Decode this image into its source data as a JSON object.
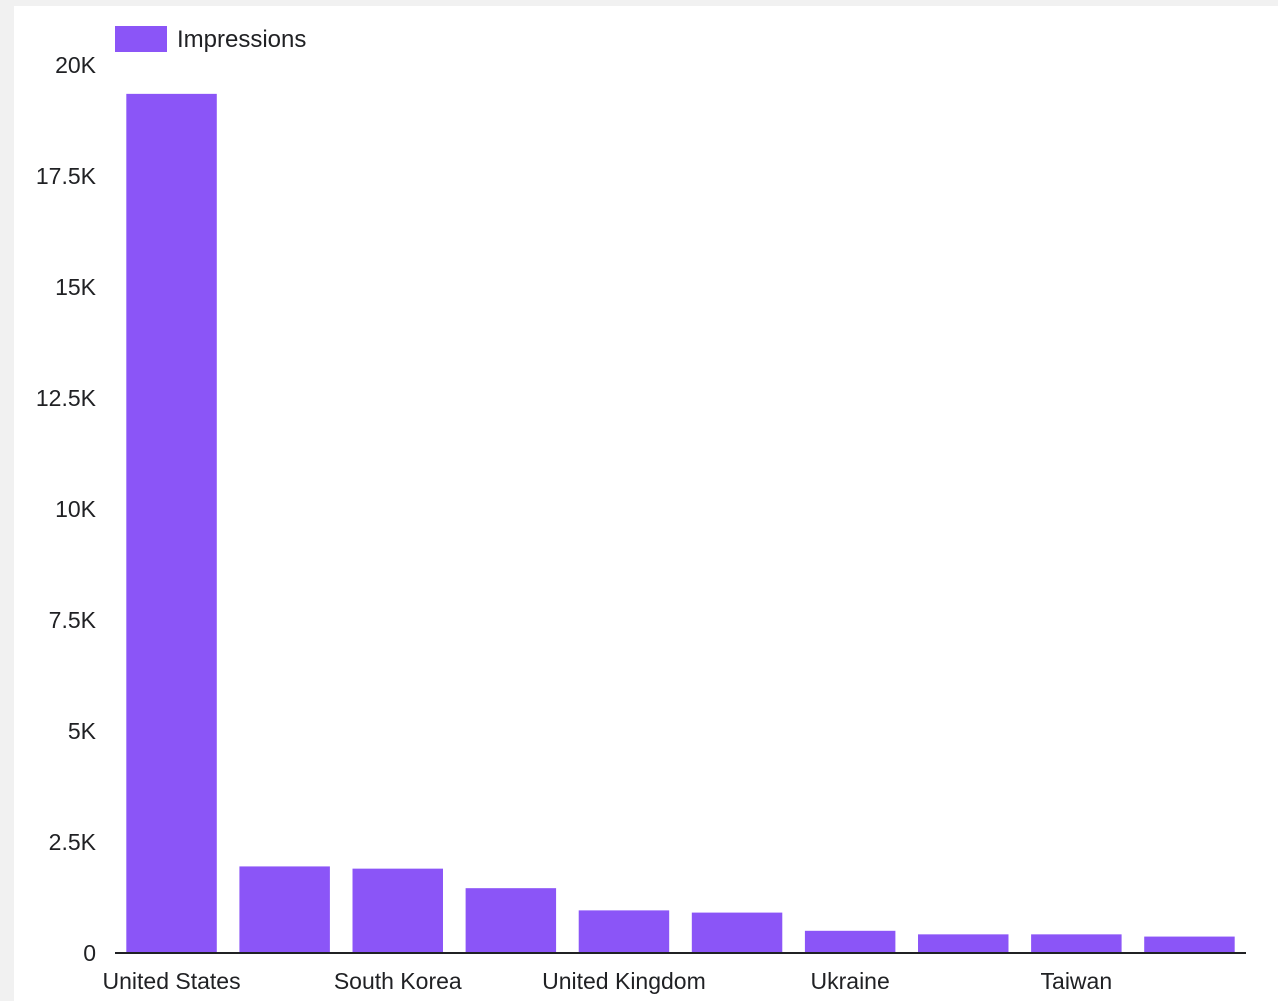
{
  "chart_data": {
    "type": "bar",
    "categories": [
      "United States",
      "",
      "South Korea",
      "",
      "United Kingdom",
      "",
      "Ukraine",
      "",
      "Taiwan",
      ""
    ],
    "series": [
      {
        "name": "Impressions",
        "color": "#8b55f7",
        "values": [
          19350,
          1950,
          1900,
          1460,
          960,
          910,
          500,
          420,
          420,
          370
        ]
      }
    ],
    "ylim": [
      0,
      20000
    ],
    "yticks": [
      0,
      2500,
      5000,
      7500,
      10000,
      12500,
      15000,
      17500,
      20000
    ],
    "ytick_labels": [
      "0",
      "2.5K",
      "5K",
      "7.5K",
      "10K",
      "12.5K",
      "15K",
      "17.5K",
      "20K"
    ],
    "xtick_labels": [
      "United States",
      "South Korea",
      "United Kingdom",
      "Ukraine",
      "Taiwan"
    ],
    "xlabel": "",
    "ylabel": "",
    "title": "",
    "grid": false,
    "legend": "top-left"
  }
}
